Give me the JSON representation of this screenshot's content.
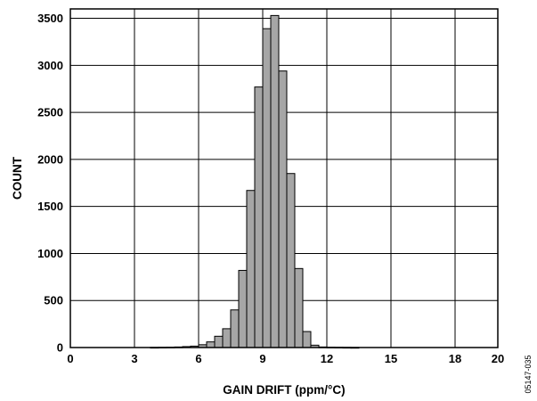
{
  "chart_data": {
    "type": "bar",
    "title": "",
    "xlabel": "GAIN DRIFT (ppm/°C)",
    "ylabel": "COUNT",
    "xlim": [
      0,
      20
    ],
    "ylim": [
      0,
      3600
    ],
    "grid": true,
    "x_ticks": [
      0,
      3,
      6,
      9,
      12,
      15,
      18,
      20
    ],
    "x_tick_labels": [
      "0",
      "3",
      "6",
      "9",
      "12",
      "15",
      "18",
      "20"
    ],
    "y_ticks": [
      0,
      500,
      1000,
      1500,
      2000,
      2500,
      3000,
      3500
    ],
    "y_tick_labels": [
      "0",
      "500",
      "1000",
      "1500",
      "2000",
      "2500",
      "3000",
      "3500"
    ],
    "bin_width": 0.375,
    "bin_starts": [
      3.75,
      4.125,
      4.5,
      4.875,
      5.25,
      5.625,
      6.0,
      6.375,
      6.75,
      7.125,
      7.5,
      7.875,
      8.25,
      8.625,
      9.0,
      9.375,
      9.75,
      10.125,
      10.5,
      10.875,
      11.25,
      11.625,
      12.0,
      12.375,
      12.75,
      13.125
    ],
    "values": [
      2,
      3,
      4,
      6,
      10,
      15,
      30,
      60,
      120,
      200,
      400,
      820,
      1670,
      2770,
      3390,
      3530,
      2940,
      1850,
      840,
      170,
      25,
      6,
      4,
      3,
      2,
      1
    ],
    "bar_color": "#a6a6a6",
    "edge_color": "#000000"
  },
  "figure_id": "05147-035"
}
